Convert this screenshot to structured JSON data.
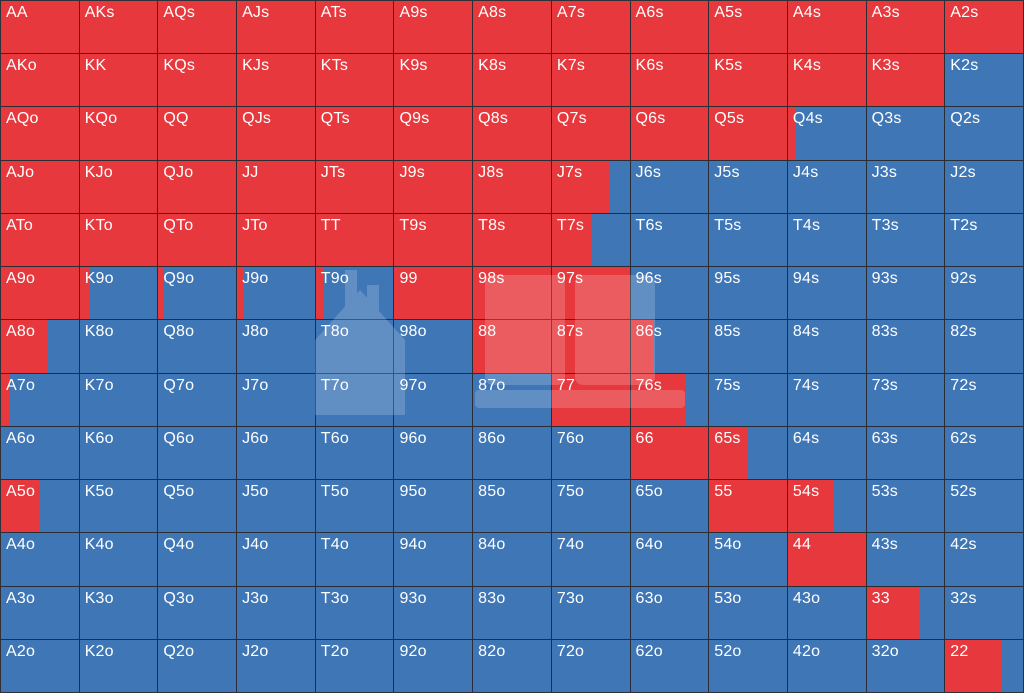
{
  "colors": {
    "raise": "#e6383d",
    "fold": "#3f76b6",
    "border": "#2a2d33"
  },
  "ranks": [
    "A",
    "K",
    "Q",
    "J",
    "T",
    "9",
    "8",
    "7",
    "6",
    "5",
    "4",
    "3",
    "2"
  ],
  "grid": [
    [
      {
        "hand": "AA",
        "raise": 1
      },
      {
        "hand": "AKs",
        "raise": 1
      },
      {
        "hand": "AQs",
        "raise": 1
      },
      {
        "hand": "AJs",
        "raise": 1
      },
      {
        "hand": "ATs",
        "raise": 1
      },
      {
        "hand": "A9s",
        "raise": 1
      },
      {
        "hand": "A8s",
        "raise": 1
      },
      {
        "hand": "A7s",
        "raise": 1
      },
      {
        "hand": "A6s",
        "raise": 1
      },
      {
        "hand": "A5s",
        "raise": 1
      },
      {
        "hand": "A4s",
        "raise": 1
      },
      {
        "hand": "A3s",
        "raise": 1
      },
      {
        "hand": "A2s",
        "raise": 1
      }
    ],
    [
      {
        "hand": "AKo",
        "raise": 1
      },
      {
        "hand": "KK",
        "raise": 1
      },
      {
        "hand": "KQs",
        "raise": 1
      },
      {
        "hand": "KJs",
        "raise": 1
      },
      {
        "hand": "KTs",
        "raise": 1
      },
      {
        "hand": "K9s",
        "raise": 1
      },
      {
        "hand": "K8s",
        "raise": 1
      },
      {
        "hand": "K7s",
        "raise": 1
      },
      {
        "hand": "K6s",
        "raise": 1
      },
      {
        "hand": "K5s",
        "raise": 1
      },
      {
        "hand": "K4s",
        "raise": 1
      },
      {
        "hand": "K3s",
        "raise": 1
      },
      {
        "hand": "K2s",
        "raise": 0
      }
    ],
    [
      {
        "hand": "AQo",
        "raise": 1
      },
      {
        "hand": "KQo",
        "raise": 1
      },
      {
        "hand": "QQ",
        "raise": 1
      },
      {
        "hand": "QJs",
        "raise": 1
      },
      {
        "hand": "QTs",
        "raise": 1
      },
      {
        "hand": "Q9s",
        "raise": 1
      },
      {
        "hand": "Q8s",
        "raise": 1
      },
      {
        "hand": "Q7s",
        "raise": 1
      },
      {
        "hand": "Q6s",
        "raise": 1
      },
      {
        "hand": "Q5s",
        "raise": 1
      },
      {
        "hand": "Q4s",
        "raise": 0.1
      },
      {
        "hand": "Q3s",
        "raise": 0
      },
      {
        "hand": "Q2s",
        "raise": 0
      }
    ],
    [
      {
        "hand": "AJo",
        "raise": 1
      },
      {
        "hand": "KJo",
        "raise": 1
      },
      {
        "hand": "QJo",
        "raise": 1
      },
      {
        "hand": "JJ",
        "raise": 1
      },
      {
        "hand": "JTs",
        "raise": 1
      },
      {
        "hand": "J9s",
        "raise": 1
      },
      {
        "hand": "J8s",
        "raise": 1
      },
      {
        "hand": "J7s",
        "raise": 0.75
      },
      {
        "hand": "J6s",
        "raise": 0
      },
      {
        "hand": "J5s",
        "raise": 0
      },
      {
        "hand": "J4s",
        "raise": 0
      },
      {
        "hand": "J3s",
        "raise": 0
      },
      {
        "hand": "J2s",
        "raise": 0
      }
    ],
    [
      {
        "hand": "ATo",
        "raise": 1
      },
      {
        "hand": "KTo",
        "raise": 1
      },
      {
        "hand": "QTo",
        "raise": 1
      },
      {
        "hand": "JTo",
        "raise": 1
      },
      {
        "hand": "TT",
        "raise": 1
      },
      {
        "hand": "T9s",
        "raise": 1
      },
      {
        "hand": "T8s",
        "raise": 1
      },
      {
        "hand": "T7s",
        "raise": 0.5
      },
      {
        "hand": "T6s",
        "raise": 0
      },
      {
        "hand": "T5s",
        "raise": 0
      },
      {
        "hand": "T4s",
        "raise": 0
      },
      {
        "hand": "T3s",
        "raise": 0
      },
      {
        "hand": "T2s",
        "raise": 0
      }
    ],
    [
      {
        "hand": "A9o",
        "raise": 1
      },
      {
        "hand": "K9o",
        "raise": 0.12
      },
      {
        "hand": "Q9o",
        "raise": 0.07
      },
      {
        "hand": "J9o",
        "raise": 0.07
      },
      {
        "hand": "T9o",
        "raise": 0.1
      },
      {
        "hand": "99",
        "raise": 1
      },
      {
        "hand": "98s",
        "raise": 1
      },
      {
        "hand": "97s",
        "raise": 1
      },
      {
        "hand": "96s",
        "raise": 0
      },
      {
        "hand": "95s",
        "raise": 0
      },
      {
        "hand": "94s",
        "raise": 0
      },
      {
        "hand": "93s",
        "raise": 0
      },
      {
        "hand": "92s",
        "raise": 0
      }
    ],
    [
      {
        "hand": "A8o",
        "raise": 0.6
      },
      {
        "hand": "K8o",
        "raise": 0
      },
      {
        "hand": "Q8o",
        "raise": 0
      },
      {
        "hand": "J8o",
        "raise": 0
      },
      {
        "hand": "T8o",
        "raise": 0
      },
      {
        "hand": "98o",
        "raise": 0
      },
      {
        "hand": "88",
        "raise": 1
      },
      {
        "hand": "87s",
        "raise": 1
      },
      {
        "hand": "86s",
        "raise": 0.3
      },
      {
        "hand": "85s",
        "raise": 0
      },
      {
        "hand": "84s",
        "raise": 0
      },
      {
        "hand": "83s",
        "raise": 0
      },
      {
        "hand": "82s",
        "raise": 0
      }
    ],
    [
      {
        "hand": "A7o",
        "raise": 0.1
      },
      {
        "hand": "K7o",
        "raise": 0
      },
      {
        "hand": "Q7o",
        "raise": 0
      },
      {
        "hand": "J7o",
        "raise": 0
      },
      {
        "hand": "T7o",
        "raise": 0
      },
      {
        "hand": "97o",
        "raise": 0
      },
      {
        "hand": "87o",
        "raise": 0
      },
      {
        "hand": "77",
        "raise": 1
      },
      {
        "hand": "76s",
        "raise": 0.7
      },
      {
        "hand": "75s",
        "raise": 0
      },
      {
        "hand": "74s",
        "raise": 0
      },
      {
        "hand": "73s",
        "raise": 0
      },
      {
        "hand": "72s",
        "raise": 0
      }
    ],
    [
      {
        "hand": "A6o",
        "raise": 0
      },
      {
        "hand": "K6o",
        "raise": 0
      },
      {
        "hand": "Q6o",
        "raise": 0
      },
      {
        "hand": "J6o",
        "raise": 0
      },
      {
        "hand": "T6o",
        "raise": 0
      },
      {
        "hand": "96o",
        "raise": 0
      },
      {
        "hand": "86o",
        "raise": 0
      },
      {
        "hand": "76o",
        "raise": 0
      },
      {
        "hand": "66",
        "raise": 1
      },
      {
        "hand": "65s",
        "raise": 0.5
      },
      {
        "hand": "64s",
        "raise": 0
      },
      {
        "hand": "63s",
        "raise": 0
      },
      {
        "hand": "62s",
        "raise": 0
      }
    ],
    [
      {
        "hand": "A5o",
        "raise": 0.5
      },
      {
        "hand": "K5o",
        "raise": 0
      },
      {
        "hand": "Q5o",
        "raise": 0
      },
      {
        "hand": "J5o",
        "raise": 0
      },
      {
        "hand": "T5o",
        "raise": 0
      },
      {
        "hand": "95o",
        "raise": 0
      },
      {
        "hand": "85o",
        "raise": 0
      },
      {
        "hand": "75o",
        "raise": 0
      },
      {
        "hand": "65o",
        "raise": 0
      },
      {
        "hand": "55",
        "raise": 1
      },
      {
        "hand": "54s",
        "raise": 0.58
      },
      {
        "hand": "53s",
        "raise": 0
      },
      {
        "hand": "52s",
        "raise": 0
      }
    ],
    [
      {
        "hand": "A4o",
        "raise": 0
      },
      {
        "hand": "K4o",
        "raise": 0
      },
      {
        "hand": "Q4o",
        "raise": 0
      },
      {
        "hand": "J4o",
        "raise": 0
      },
      {
        "hand": "T4o",
        "raise": 0
      },
      {
        "hand": "94o",
        "raise": 0
      },
      {
        "hand": "84o",
        "raise": 0
      },
      {
        "hand": "74o",
        "raise": 0
      },
      {
        "hand": "64o",
        "raise": 0
      },
      {
        "hand": "54o",
        "raise": 0
      },
      {
        "hand": "44",
        "raise": 1
      },
      {
        "hand": "43s",
        "raise": 0
      },
      {
        "hand": "42s",
        "raise": 0
      }
    ],
    [
      {
        "hand": "A3o",
        "raise": 0
      },
      {
        "hand": "K3o",
        "raise": 0
      },
      {
        "hand": "Q3o",
        "raise": 0
      },
      {
        "hand": "J3o",
        "raise": 0
      },
      {
        "hand": "T3o",
        "raise": 0
      },
      {
        "hand": "93o",
        "raise": 0
      },
      {
        "hand": "83o",
        "raise": 0
      },
      {
        "hand": "73o",
        "raise": 0
      },
      {
        "hand": "63o",
        "raise": 0
      },
      {
        "hand": "53o",
        "raise": 0
      },
      {
        "hand": "43o",
        "raise": 0
      },
      {
        "hand": "33",
        "raise": 0.68
      },
      {
        "hand": "32s",
        "raise": 0
      }
    ],
    [
      {
        "hand": "A2o",
        "raise": 0
      },
      {
        "hand": "K2o",
        "raise": 0
      },
      {
        "hand": "Q2o",
        "raise": 0
      },
      {
        "hand": "J2o",
        "raise": 0
      },
      {
        "hand": "T2o",
        "raise": 0
      },
      {
        "hand": "92o",
        "raise": 0
      },
      {
        "hand": "82o",
        "raise": 0
      },
      {
        "hand": "72o",
        "raise": 0
      },
      {
        "hand": "62o",
        "raise": 0
      },
      {
        "hand": "52o",
        "raise": 0
      },
      {
        "hand": "42o",
        "raise": 0
      },
      {
        "hand": "32o",
        "raise": 0
      },
      {
        "hand": "22",
        "raise": 0.72
      }
    ]
  ]
}
